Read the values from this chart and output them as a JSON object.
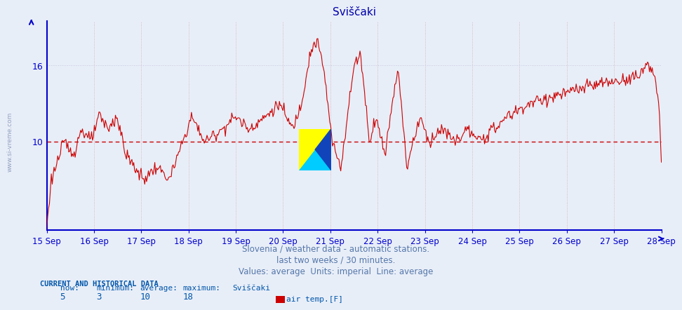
{
  "title": "Sviščaki",
  "ylabel_side": "www.si-vreme.com",
  "x_labels": [
    "15 Sep",
    "16 Sep",
    "17 Sep",
    "18 Sep",
    "19 Sep",
    "20 Sep",
    "21 Sep",
    "22 Sep",
    "23 Sep",
    "24 Sep",
    "25 Sep",
    "26 Sep",
    "27 Sep",
    "28 Sep"
  ],
  "yticks": [
    10,
    16
  ],
  "ymin": 3,
  "ymax": 19.5,
  "average_line": 10,
  "line_color": "#cc0000",
  "average_line_color": "#cc0000",
  "bg_color": "#e8eef8",
  "title_color": "#0000aa",
  "axis_color": "#0000cc",
  "grid_color": "#c8c8dd",
  "vgrid_color": "#cc9999",
  "footer_text1": "Slovenia / weather data - automatic stations.",
  "footer_text2": "last two weeks / 30 minutes.",
  "footer_text3": "Values: average  Units: imperial  Line: average",
  "footer_color": "#5577aa",
  "stats_label": "CURRENT AND HISTORICAL DATA",
  "stats_now": "5",
  "stats_min": "3",
  "stats_avg": "10",
  "stats_max": "18",
  "stats_station": "Sviščaki",
  "legend_label": "air temp.[F]",
  "stats_color": "#0055aa",
  "num_points": 672
}
